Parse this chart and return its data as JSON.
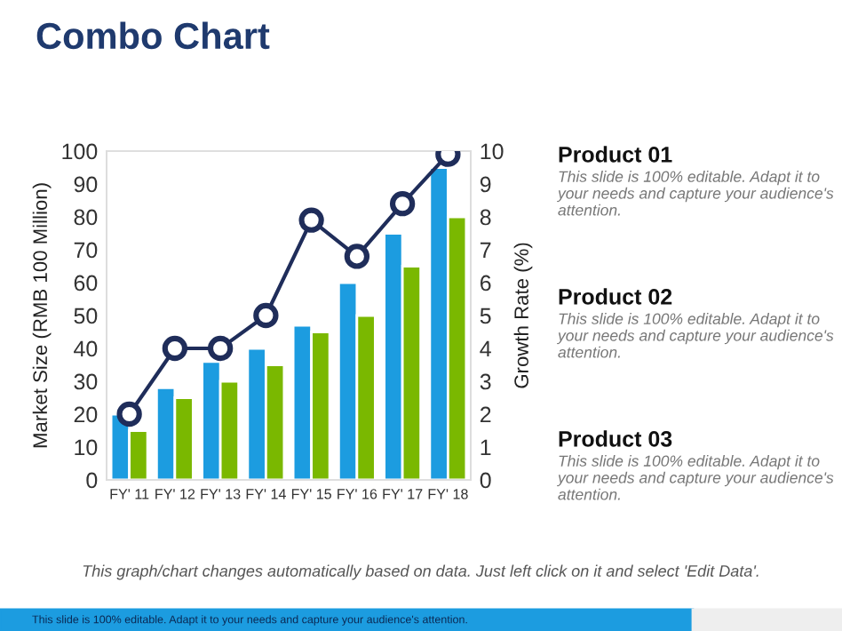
{
  "chart_data": {
    "type": "bar",
    "title": "Combo Chart",
    "categories": [
      "FY' 11",
      "FY' 12",
      "FY' 13",
      "FY' 14",
      "FY' 15",
      "FY' 16",
      "FY' 17",
      "FY' 18"
    ],
    "series": [
      {
        "color": "#1c9ce0",
        "values": [
          20,
          28,
          36,
          40,
          47,
          60,
          75,
          95
        ]
      },
      {
        "color": "#7ab800",
        "values": [
          15,
          25,
          30,
          35,
          45,
          50,
          65,
          80
        ]
      },
      {
        "type": "line",
        "axis": "y2",
        "color": "#1f2d5a",
        "marker": "circle",
        "values": [
          2,
          4,
          4,
          5,
          7.9,
          6.8,
          8.4,
          9.9
        ]
      }
    ],
    "ylabel": "Market Size (RMB 100 Million)",
    "y2label": "Growth Rate (%)",
    "ylim": [
      0,
      100
    ],
    "yticks": [
      0,
      10,
      20,
      30,
      40,
      50,
      60,
      70,
      80,
      90,
      100
    ],
    "y2lim": [
      0,
      10
    ],
    "y2ticks": [
      0,
      1,
      2,
      3,
      4,
      5,
      6,
      7,
      8,
      9,
      10
    ],
    "grid": false,
    "annotations": [
      "Product 01",
      "This slide is 100% editable. Adapt it to your needs and capture your audience's attention.",
      "Product 02",
      "This slide is 100% editable. Adapt it to your needs and capture your audience's attention.",
      "Product 03",
      "This slide is 100% editable. Adapt it to your needs and capture your audience's attention.",
      "This graph/chart changes automatically based on data. Just left click on it and select 'Edit Data'.",
      "This slide is 100% editable. Adapt it to your needs and capture your audience's attention."
    ]
  }
}
